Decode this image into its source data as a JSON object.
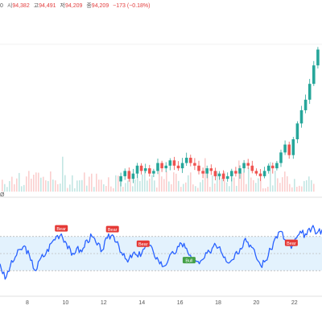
{
  "header": {
    "open_label": "시",
    "open_value": "94,382",
    "high_label": "고",
    "high_value": "94,491",
    "low_label": "저",
    "low_value": "94,209",
    "close_label": "종",
    "close_value": "94,209",
    "change": "−173 (−0.18%)",
    "top_left_glyph": "0",
    "rsi_glyph": "Ø"
  },
  "colors": {
    "up": "#26a69a",
    "down": "#ef5350",
    "rsi_line": "#2962ff",
    "rsi_band": "#e3f2fd",
    "bear_label": "#e53935",
    "bull_label": "#43a047"
  },
  "chart_data": [
    {
      "type": "candlestick",
      "description_note": "price panel",
      "x_ticks": [
        "8",
        "10",
        "12",
        "14",
        "16",
        "18",
        "20",
        "22"
      ],
      "price_path": [
        93.2,
        93.4,
        93.6,
        93.3,
        93.5,
        93.8,
        93.6,
        93.7,
        93.5,
        93.6,
        93.9,
        93.7,
        93.8,
        94.0,
        93.8,
        93.7,
        93.9,
        94.1,
        93.9,
        93.8,
        93.6,
        93.5,
        93.7,
        93.6,
        93.4,
        93.5,
        93.3,
        93.4,
        93.6,
        93.5,
        93.7,
        93.9,
        93.8,
        93.6,
        93.5,
        93.4,
        93.6,
        93.8,
        93.7,
        93.9,
        94.3,
        94.6,
        94.2,
        94.8,
        95.4,
        95.9,
        96.3,
        96.9,
        97.6,
        98.2
      ]
    },
    {
      "type": "line",
      "description_note": "RSI panel",
      "ylim": [
        0,
        100
      ],
      "band": [
        30,
        70
      ],
      "x_ticks": [
        "8",
        "10",
        "12",
        "14",
        "16",
        "18",
        "20",
        "22"
      ],
      "values": [
        38,
        20,
        35,
        46,
        55,
        58,
        42,
        30,
        45,
        50,
        62,
        70,
        73,
        62,
        48,
        56,
        52,
        66,
        70,
        60,
        54,
        68,
        72,
        64,
        48,
        40,
        50,
        46,
        55,
        60,
        52,
        42,
        35,
        44,
        50,
        58,
        62,
        48,
        40,
        38,
        45,
        52,
        62,
        58,
        46,
        40,
        50,
        56,
        68,
        60,
        48,
        36,
        42,
        55,
        70,
        76,
        62,
        56,
        68,
        74,
        72,
        80,
        74,
        78
      ],
      "signals": [
        {
          "label": "Bear",
          "index": 12
        },
        {
          "label": "Bear",
          "index": 22
        },
        {
          "label": "Bear",
          "index": 28
        },
        {
          "label": "Bull",
          "index": 37
        },
        {
          "label": "Bear",
          "index": 57
        }
      ]
    }
  ]
}
